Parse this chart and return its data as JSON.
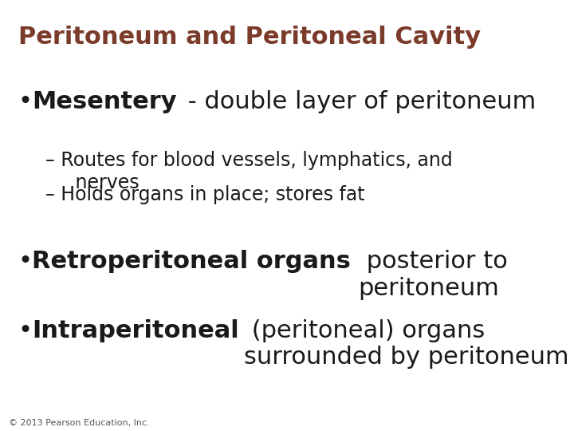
{
  "title": "Peritoneum and Peritoneal Cavity",
  "title_color": "#7B3B2A",
  "title_fontsize": 22,
  "background_color": "#FFFFFF",
  "bullet_color": "#1a1a1a",
  "content": [
    {
      "type": "bullet",
      "level": 1,
      "bold_text": "Mesentery",
      "normal_text": " - double layer of peritoneum",
      "fontsize": 22
    },
    {
      "type": "bullet",
      "level": 2,
      "bold_text": "",
      "normal_text": "– Routes for blood vessels, lymphatics, and\n     nerves",
      "fontsize": 17
    },
    {
      "type": "bullet",
      "level": 2,
      "bold_text": "",
      "normal_text": "– Holds organs in place; stores fat",
      "fontsize": 17
    },
    {
      "type": "bullet",
      "level": 1,
      "bold_text": "Retroperitoneal organs",
      "normal_text": " posterior to\nperitoneum",
      "fontsize": 22
    },
    {
      "type": "bullet",
      "level": 1,
      "bold_text": "Intraperitoneal",
      "normal_text": " (peritoneal) organs\nsurrounded by peritoneum",
      "fontsize": 22
    }
  ],
  "footer": "© 2013 Pearson Education, Inc.",
  "footer_fontsize": 8,
  "footer_color": "#555555"
}
